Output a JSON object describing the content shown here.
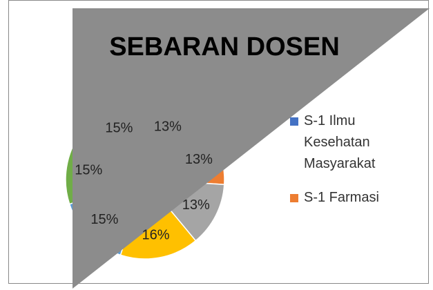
{
  "chart_data": {
    "type": "pie",
    "title": "SEBARAN DOSEN",
    "categories": [
      "S-1 Ilmu Kesehatan Masyarakat",
      "S-1 Farmasi",
      null,
      null,
      null,
      null,
      null
    ],
    "values": [
      13,
      13,
      13,
      16,
      15,
      15,
      15
    ],
    "value_labels": [
      "13%",
      "13%",
      "13%",
      "16%",
      "15%",
      "15%",
      "15%"
    ],
    "colors": [
      "#4472c4",
      "#ed7d31",
      "#a5a5a5",
      "#ffc000",
      "#5b9bd5",
      "#70ad47",
      "#264478"
    ],
    "legend": "right"
  }
}
